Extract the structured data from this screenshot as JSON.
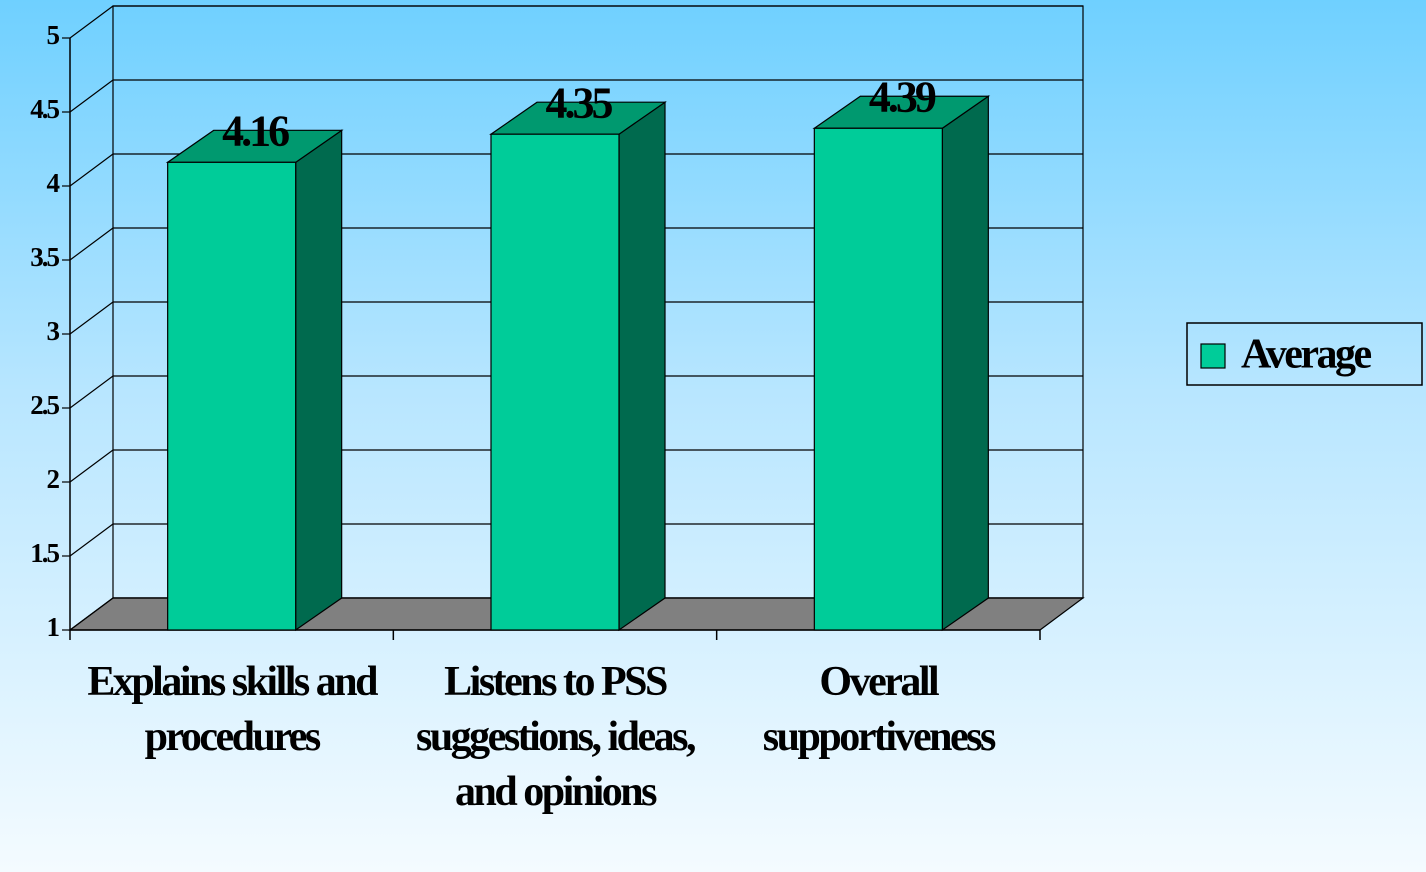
{
  "chart_data": {
    "type": "bar",
    "categories": [
      "Explains skills and procedures",
      "Listens to PSS suggestions, ideas, and opinions",
      "Overall supportiveness"
    ],
    "series": [
      {
        "name": "Average",
        "color": "#00cc99",
        "values": [
          4.16,
          4.35,
          4.39
        ]
      }
    ],
    "ylim": [
      1,
      5
    ],
    "yticks": [
      1,
      1.5,
      2,
      2.5,
      3,
      3.5,
      4,
      4.5,
      5
    ],
    "grid": true,
    "legend": "right"
  }
}
